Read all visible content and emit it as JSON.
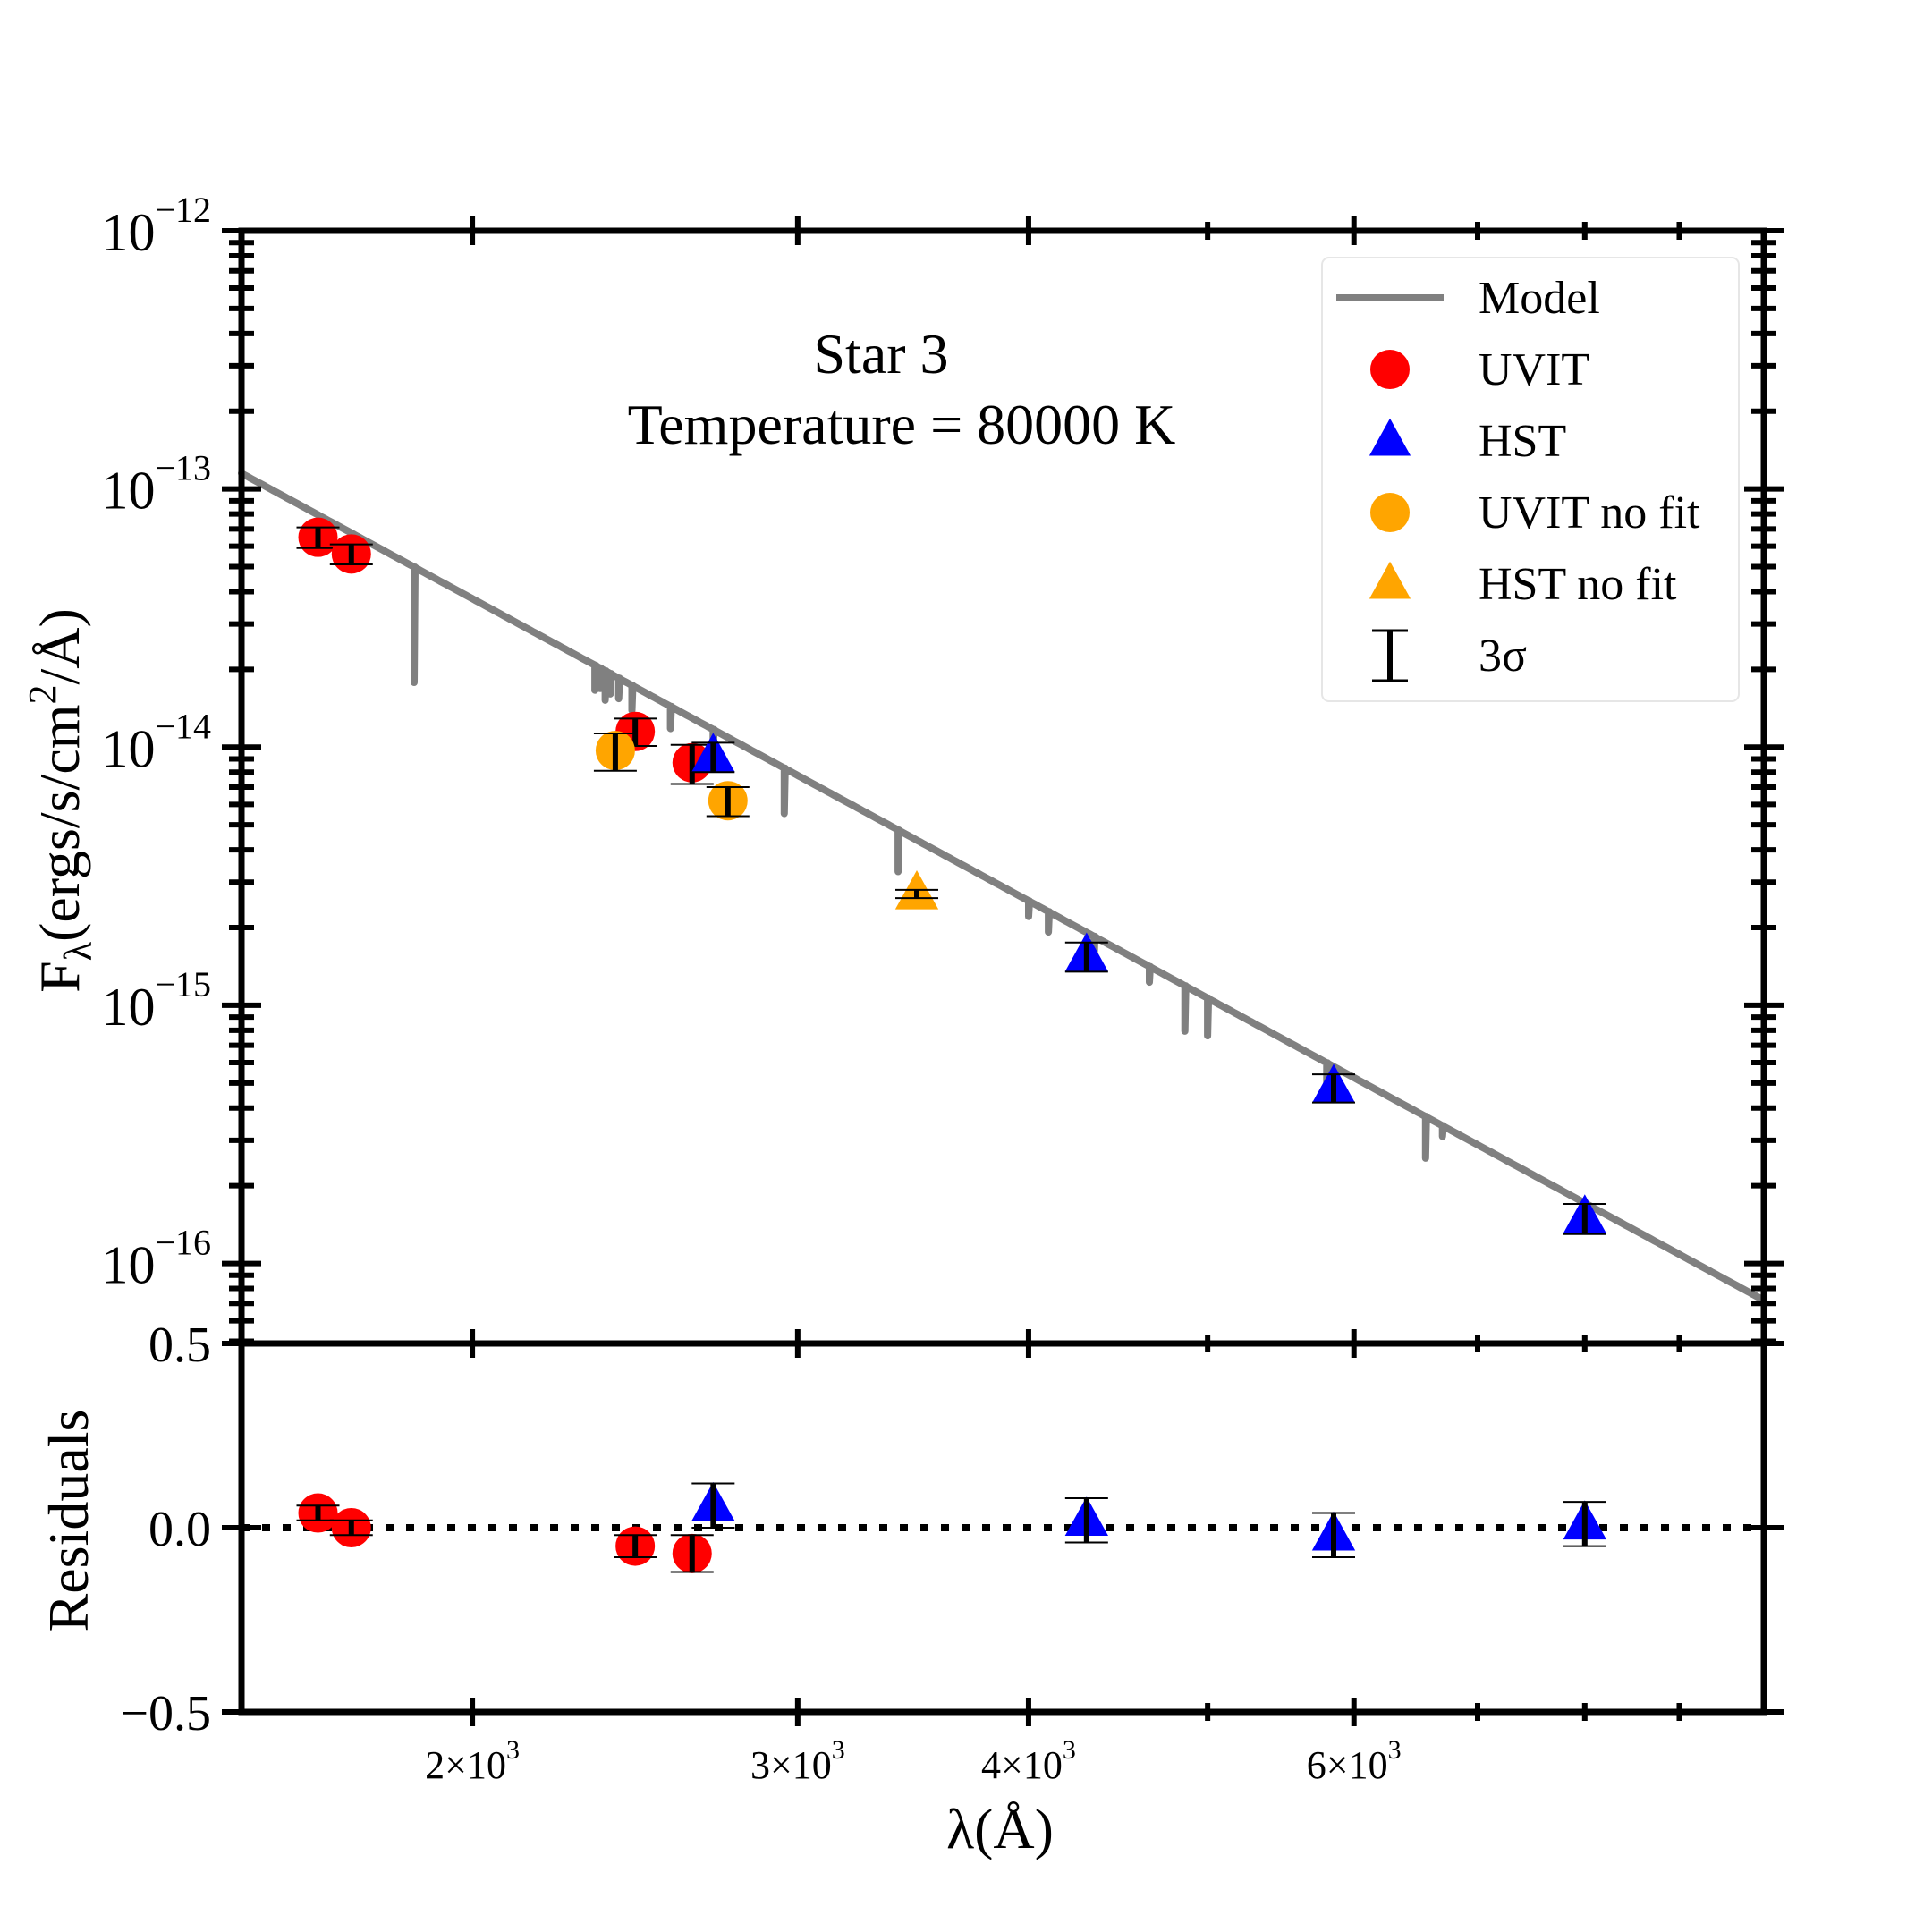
{
  "chart_data": {
    "type": "scatter",
    "title": "Star 3",
    "subtitle": "Temperature = 80000 K",
    "xscale": "log",
    "xlim": [
      1500,
      10000
    ],
    "xlabel": "λ(Å)",
    "xticks": [
      {
        "value": 2000,
        "label": "2×10",
        "exp": "3"
      },
      {
        "value": 3000,
        "label": "3×10",
        "exp": "3"
      },
      {
        "value": 4000,
        "label": "4×10",
        "exp": "3"
      },
      {
        "value": 6000,
        "label": "6×10",
        "exp": "3"
      }
    ],
    "top_panel": {
      "yscale": "log",
      "ylabel_main": "F",
      "ylabel_sub": "λ",
      "ylabel_rest": "(ergs/s/cm",
      "ylabel_sup": "2",
      "ylabel_end": "/Å)",
      "ylim": [
        4.9e-17,
        1e-12
      ],
      "yticks": [
        {
          "value": 1e-12,
          "base": "10",
          "exp": "−12"
        },
        {
          "value": 1e-13,
          "base": "10",
          "exp": "−13"
        },
        {
          "value": 1e-14,
          "base": "10",
          "exp": "−14"
        },
        {
          "value": 1e-15,
          "base": "10",
          "exp": "−15"
        },
        {
          "value": 1e-16,
          "base": "10",
          "exp": "−16"
        }
      ],
      "model": {
        "name": "Model",
        "color": "#808080",
        "power_law": {
          "anchor_wavelength": 1500,
          "anchor_flux": 1.15e-13,
          "end_wavelength": 10000,
          "end_flux": 7.2e-17
        },
        "absorption_lines": [
          {
            "wavelength": 1860,
            "depth": 2.8
          },
          {
            "wavelength": 2330,
            "depth": 1.25
          },
          {
            "wavelength": 2345,
            "depth": 1.2
          },
          {
            "wavelength": 2360,
            "depth": 1.3
          },
          {
            "wavelength": 2375,
            "depth": 1.2
          },
          {
            "wavelength": 2400,
            "depth": 1.2
          },
          {
            "wavelength": 2440,
            "depth": 1.25
          },
          {
            "wavelength": 2560,
            "depth": 1.22
          },
          {
            "wavelength": 2700,
            "depth": 1.3
          },
          {
            "wavelength": 2950,
            "depth": 1.5
          },
          {
            "wavelength": 3400,
            "depth": 1.45
          },
          {
            "wavelength": 4000,
            "depth": 1.15
          },
          {
            "wavelength": 4100,
            "depth": 1.2
          },
          {
            "wavelength": 4340,
            "depth": 1.3
          },
          {
            "wavelength": 4650,
            "depth": 1.15
          },
          {
            "wavelength": 4860,
            "depth": 1.5
          },
          {
            "wavelength": 5000,
            "depth": 1.4
          },
          {
            "wavelength": 5800,
            "depth": 1.2
          },
          {
            "wavelength": 6560,
            "depth": 1.45
          },
          {
            "wavelength": 6700,
            "depth": 1.1
          }
        ]
      },
      "series": [
        {
          "name": "UVIT",
          "marker": "circle",
          "color": "#ff0000",
          "points": [
            {
              "x": 1650,
              "y": 6.5e-14,
              "err": 6e-15
            },
            {
              "x": 1720,
              "y": 5.6e-14,
              "err": 5e-15
            },
            {
              "x": 2450,
              "y": 1.15e-14,
              "err": 1.4e-15
            },
            {
              "x": 2630,
              "y": 8.7e-15,
              "err": 1.5e-15
            }
          ]
        },
        {
          "name": "HST",
          "marker": "triangle",
          "color": "#0000ff",
          "points": [
            {
              "x": 2700,
              "y": 9.2e-15,
              "err": 1.2e-15
            },
            {
              "x": 4300,
              "y": 1.55e-15,
              "err": 2e-16
            },
            {
              "x": 5850,
              "y": 4.8e-16,
              "err": 6e-17
            },
            {
              "x": 8000,
              "y": 1.5e-16,
              "err": 2e-17
            }
          ]
        },
        {
          "name": "UVIT no fit",
          "marker": "circle",
          "color": "#ffa500",
          "points": [
            {
              "x": 2390,
              "y": 9.7e-15,
              "err": 1.6e-15
            },
            {
              "x": 2750,
              "y": 6.2e-15,
              "err": 8e-16
            }
          ]
        },
        {
          "name": "HST no fit",
          "marker": "triangle",
          "color": "#ffa500",
          "points": [
            {
              "x": 3480,
              "y": 2.7e-15,
              "err": 1e-16
            }
          ]
        }
      ],
      "legend": {
        "position": "top-right",
        "entries": [
          {
            "label": "Model",
            "kind": "line",
            "color": "#808080"
          },
          {
            "label": "UVIT",
            "kind": "circle",
            "color": "#ff0000"
          },
          {
            "label": "HST",
            "kind": "triangle",
            "color": "#0000ff"
          },
          {
            "label": "UVIT no fit",
            "kind": "circle",
            "color": "#ffa500"
          },
          {
            "label": "HST no fit",
            "kind": "triangle",
            "color": "#ffa500"
          },
          {
            "label": "3σ",
            "kind": "errorbar",
            "color": "#000000"
          }
        ]
      }
    },
    "bottom_panel": {
      "ylabel": "Residuals",
      "ylim": [
        -0.5,
        0.5
      ],
      "yticks": [
        {
          "value": 0.5,
          "label": "0.5"
        },
        {
          "value": 0.0,
          "label": "0.0"
        },
        {
          "value": -0.5,
          "label": "−0.5"
        }
      ],
      "zero_line": {
        "value": 0.0,
        "style": "dotted"
      },
      "series": [
        {
          "name": "UVIT",
          "marker": "circle",
          "color": "#ff0000",
          "points": [
            {
              "x": 1650,
              "y": 0.04,
              "err": 0.02
            },
            {
              "x": 1720,
              "y": 0.0,
              "err": 0.02
            },
            {
              "x": 2450,
              "y": -0.05,
              "err": 0.03
            },
            {
              "x": 2630,
              "y": -0.07,
              "err": 0.05
            }
          ]
        },
        {
          "name": "HST",
          "marker": "triangle",
          "color": "#0000ff",
          "points": [
            {
              "x": 2700,
              "y": 0.06,
              "err": 0.06
            },
            {
              "x": 4300,
              "y": 0.02,
              "err": 0.06
            },
            {
              "x": 5850,
              "y": -0.02,
              "err": 0.06
            },
            {
              "x": 8000,
              "y": 0.01,
              "err": 0.06
            }
          ]
        }
      ]
    }
  }
}
